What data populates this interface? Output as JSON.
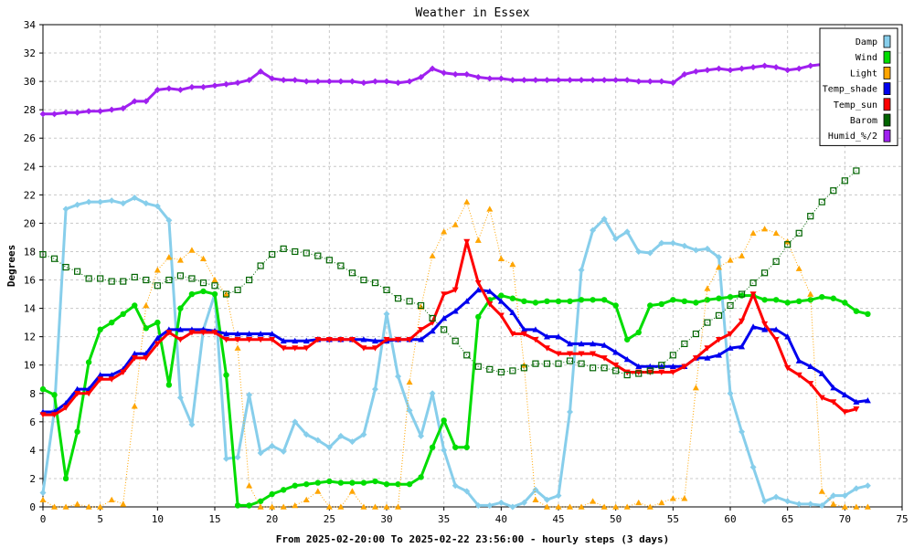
{
  "chart_data": {
    "type": "line",
    "title": "Weather in Essex",
    "xlabel": "From 2025-02-20:00 To 2025-02-22 23:56:00 - hourly steps (3 days)",
    "ylabel": "Degrees",
    "xlim": [
      0,
      75
    ],
    "ylim": [
      0,
      34
    ],
    "xticks": [
      0,
      5,
      10,
      15,
      20,
      25,
      30,
      35,
      40,
      45,
      50,
      55,
      60,
      65,
      70,
      75
    ],
    "yticks": [
      0,
      2,
      4,
      6,
      8,
      10,
      12,
      14,
      16,
      18,
      20,
      22,
      24,
      26,
      28,
      30,
      32,
      34
    ],
    "grid": true,
    "legend_position": "top-right",
    "series": [
      {
        "name": "Damp",
        "color": "#87ceeb",
        "marker": "diamond",
        "line": "solid",
        "values": [
          1.0,
          6.8,
          21.0,
          21.3,
          21.5,
          21.5,
          21.6,
          21.4,
          21.8,
          21.4,
          21.2,
          20.2,
          7.7,
          5.8,
          12.5,
          15.0,
          3.4,
          3.5,
          7.9,
          3.8,
          4.3,
          3.9,
          6.0,
          5.1,
          4.7,
          4.2,
          5.0,
          4.6,
          5.1,
          8.3,
          13.6,
          9.2,
          6.8,
          5.0,
          8.0,
          4.0,
          1.5,
          1.1,
          0.1,
          0.1,
          0.3,
          0.0,
          0.3,
          1.2,
          0.5,
          0.8,
          6.7,
          16.7,
          19.5,
          20.3,
          18.9,
          19.4,
          18.0,
          17.9,
          18.6,
          18.6,
          18.4,
          18.1,
          18.2,
          17.6,
          8.0,
          5.3,
          2.8,
          0.4,
          0.7,
          0.4,
          0.2,
          0.2,
          0.1,
          0.8,
          0.8,
          1.3,
          1.5
        ]
      },
      {
        "name": "Wind",
        "color": "#00dd00",
        "marker": "circle",
        "line": "solid",
        "values": [
          8.3,
          7.9,
          2.0,
          5.3,
          10.2,
          12.5,
          13.0,
          13.6,
          14.2,
          12.6,
          13.0,
          8.6,
          14.0,
          15.0,
          15.2,
          15.0,
          9.3,
          0.1,
          0.1,
          0.4,
          0.9,
          1.2,
          1.5,
          1.6,
          1.7,
          1.8,
          1.7,
          1.7,
          1.7,
          1.8,
          1.6,
          1.6,
          1.6,
          2.1,
          4.2,
          6.1,
          4.2,
          4.2,
          13.4,
          14.6,
          14.9,
          14.7,
          14.5,
          14.4,
          14.5,
          14.5,
          14.5,
          14.6,
          14.6,
          14.6,
          14.2,
          11.8,
          12.3,
          14.2,
          14.3,
          14.6,
          14.5,
          14.4,
          14.6,
          14.7,
          14.8,
          14.9,
          14.9,
          14.6,
          14.6,
          14.4,
          14.5,
          14.6,
          14.8,
          14.7,
          14.4,
          13.8,
          13.6
        ]
      },
      {
        "name": "Light",
        "color": "#ffa500",
        "marker": "triangle-up",
        "line": "dotted",
        "values": [
          0.5,
          0.0,
          0.0,
          0.2,
          0.0,
          0.0,
          0.5,
          0.2,
          7.1,
          14.2,
          16.7,
          17.6,
          17.4,
          18.1,
          17.5,
          16.0,
          15.0,
          11.2,
          1.5,
          0.0,
          0.0,
          0.0,
          0.1,
          0.5,
          1.1,
          0.0,
          0.0,
          1.1,
          0.0,
          0.0,
          0.0,
          0.0,
          8.8,
          14.1,
          17.7,
          19.4,
          19.9,
          21.5,
          18.8,
          21.0,
          17.5,
          17.1,
          10.0,
          0.5,
          0.0,
          0.0,
          0.0,
          0.0,
          0.4,
          0.0,
          0.0,
          0.0,
          0.3,
          0.0,
          0.3,
          0.6,
          0.6,
          8.4,
          15.4,
          16.9,
          17.4,
          17.7,
          19.3,
          19.6,
          19.3,
          18.7,
          16.8,
          15.0,
          1.1,
          0.2,
          0.0,
          0.0,
          0.0
        ]
      },
      {
        "name": "Temp_shade",
        "color": "#0000ee",
        "marker": "triangle-up",
        "line": "solid",
        "values": [
          6.7,
          6.7,
          7.3,
          8.3,
          8.3,
          9.3,
          9.3,
          9.7,
          10.8,
          10.8,
          11.9,
          12.5,
          12.5,
          12.5,
          12.5,
          12.4,
          12.2,
          12.2,
          12.2,
          12.2,
          12.2,
          11.7,
          11.7,
          11.7,
          11.8,
          11.8,
          11.8,
          11.8,
          11.8,
          11.7,
          11.7,
          11.8,
          11.8,
          11.8,
          12.4,
          13.3,
          13.8,
          14.5,
          15.3,
          15.2,
          14.5,
          13.7,
          12.5,
          12.5,
          12.0,
          12.0,
          11.5,
          11.5,
          11.5,
          11.4,
          10.9,
          10.4,
          9.9,
          9.9,
          9.9,
          9.9,
          9.9,
          10.5,
          10.5,
          10.7,
          11.2,
          11.3,
          12.7,
          12.5,
          12.5,
          12.0,
          10.3,
          9.9,
          9.4,
          8.4,
          7.9,
          7.4,
          7.5
        ]
      },
      {
        "name": "Temp_sun",
        "color": "#ff0000",
        "marker": "triangle-down",
        "line": "solid",
        "values": [
          6.5,
          6.5,
          7.0,
          8.0,
          8.0,
          9.0,
          9.0,
          9.5,
          10.5,
          10.5,
          11.5,
          12.3,
          11.8,
          12.3,
          12.3,
          12.3,
          11.8,
          11.8,
          11.8,
          11.8,
          11.8,
          11.2,
          11.2,
          11.2,
          11.8,
          11.8,
          11.8,
          11.8,
          11.2,
          11.2,
          11.8,
          11.8,
          11.8,
          12.5,
          13.0,
          15.0,
          15.3,
          18.7,
          15.8,
          14.3,
          13.5,
          12.2,
          12.2,
          11.8,
          11.2,
          10.8,
          10.8,
          10.8,
          10.8,
          10.5,
          10.0,
          9.5,
          9.5,
          9.5,
          9.5,
          9.5,
          9.9,
          10.5,
          11.2,
          11.8,
          12.2,
          13.1,
          15.0,
          12.9,
          11.8,
          9.8,
          9.3,
          8.7,
          7.7,
          7.4,
          6.7,
          6.9
        ]
      },
      {
        "name": "Barom",
        "color": "#006400",
        "marker": "square-open",
        "line": "dotted",
        "values": [
          17.8,
          17.5,
          16.9,
          16.6,
          16.1,
          16.1,
          15.9,
          15.9,
          16.2,
          16.0,
          15.6,
          16.0,
          16.3,
          16.1,
          15.8,
          15.6,
          15.0,
          15.3,
          16.0,
          17.0,
          17.8,
          18.2,
          18.0,
          17.9,
          17.7,
          17.4,
          17.0,
          16.5,
          16.0,
          15.8,
          15.3,
          14.7,
          14.5,
          14.2,
          13.3,
          12.5,
          11.7,
          10.7,
          9.9,
          9.7,
          9.5,
          9.6,
          9.8,
          10.1,
          10.1,
          10.1,
          10.3,
          10.1,
          9.8,
          9.8,
          9.6,
          9.3,
          9.4,
          9.6,
          10.0,
          10.7,
          11.5,
          12.2,
          13.0,
          13.5,
          14.2,
          15.0,
          15.8,
          16.5,
          17.3,
          18.5,
          19.3,
          20.5,
          21.5,
          22.3,
          23.0,
          23.7
        ]
      },
      {
        "name": "Humid_%/2",
        "color": "#a020f0",
        "marker": "diamond",
        "line": "solid",
        "values": [
          27.7,
          27.7,
          27.8,
          27.8,
          27.9,
          27.9,
          28.0,
          28.1,
          28.6,
          28.6,
          29.4,
          29.5,
          29.4,
          29.6,
          29.6,
          29.7,
          29.8,
          29.9,
          30.1,
          30.7,
          30.2,
          30.1,
          30.1,
          30.0,
          30.0,
          30.0,
          30.0,
          30.0,
          29.9,
          30.0,
          30.0,
          29.9,
          30.0,
          30.3,
          30.9,
          30.6,
          30.5,
          30.5,
          30.3,
          30.2,
          30.2,
          30.1,
          30.1,
          30.1,
          30.1,
          30.1,
          30.1,
          30.1,
          30.1,
          30.1,
          30.1,
          30.1,
          30.0,
          30.0,
          30.0,
          29.9,
          30.5,
          30.7,
          30.8,
          30.9,
          30.8,
          30.9,
          31.0,
          31.1,
          31.0,
          30.8,
          30.9,
          31.1,
          31.2
        ]
      }
    ]
  }
}
